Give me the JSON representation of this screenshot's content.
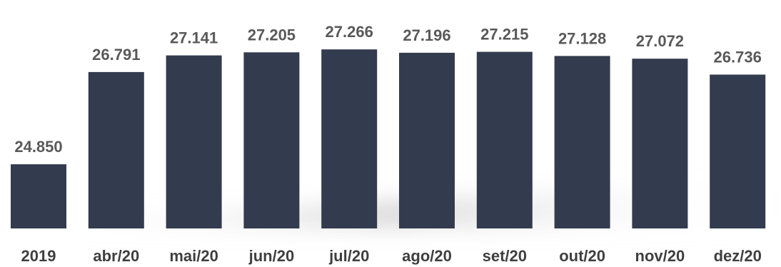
{
  "chart_data": {
    "type": "bar",
    "categories": [
      "2019",
      "abr/20",
      "mai/20",
      "jun/20",
      "jul/20",
      "ago/20",
      "set/20",
      "out/20",
      "nov/20",
      "dez/20"
    ],
    "values": [
      24.85,
      26.791,
      27.141,
      27.205,
      27.266,
      27.196,
      27.215,
      27.128,
      27.072,
      26.736
    ],
    "value_labels": [
      "24.850",
      "26.791",
      "27.141",
      "27.205",
      "27.266",
      "27.196",
      "27.215",
      "27.128",
      "27.072",
      "26.736"
    ],
    "title": "",
    "xlabel": "",
    "ylabel": "",
    "ylim": [
      23.5,
      27.6
    ],
    "grid": false,
    "legend": "none",
    "bar_color": "#333c4e",
    "label_color": "#595959",
    "shadow_color": "#c8c8c8"
  }
}
